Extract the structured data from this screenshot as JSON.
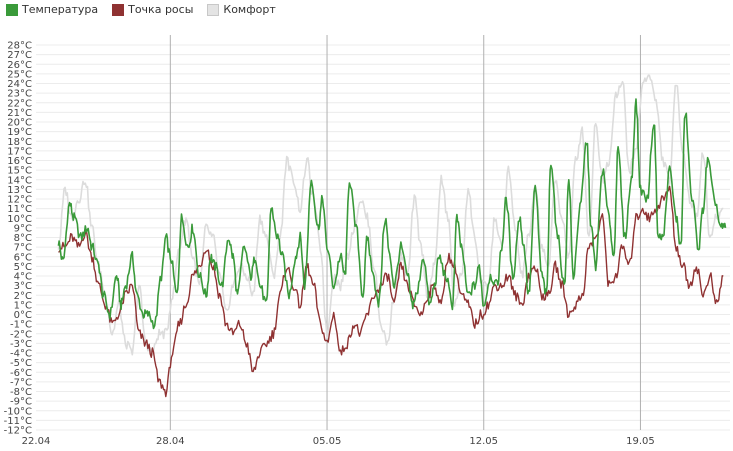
{
  "chart_data": {
    "type": "line",
    "title": "",
    "xlabel": "",
    "ylabel": "",
    "x_ticks": [
      "22.04",
      "28.04",
      "05.05",
      "12.05",
      "19.05"
    ],
    "x_range_days": [
      0,
      31
    ],
    "x_tick_days": [
      0,
      6,
      13,
      20,
      27
    ],
    "ylim": [
      -12,
      28
    ],
    "y_tick_values": [
      28,
      27,
      26,
      25,
      24,
      23,
      22,
      21,
      20,
      19,
      18,
      17,
      16,
      15,
      14,
      13,
      12,
      11,
      10,
      9,
      8,
      7,
      6,
      5,
      4,
      3,
      2,
      1,
      0,
      -1,
      -2,
      -3,
      -4,
      -5,
      -6,
      -7,
      -8,
      -9,
      -10,
      -11,
      -12
    ],
    "y_unit": "°C",
    "legend_position": "top-left",
    "series": [
      {
        "name": "Температура",
        "color": "#3a9a3a",
        "x": [
          1.0,
          1.2,
          1.5,
          1.7,
          2.0,
          2.3,
          2.5,
          2.8,
          3.0,
          3.3,
          3.6,
          3.8,
          4.0,
          4.3,
          4.5,
          4.8,
          5.0,
          5.3,
          5.6,
          5.8,
          6.0,
          6.3,
          6.5,
          6.8,
          7.0,
          7.3,
          7.6,
          7.8,
          8.0,
          8.3,
          8.6,
          8.8,
          9.0,
          9.3,
          9.6,
          9.8,
          10.0,
          10.3,
          10.5,
          10.8,
          11.0,
          11.3,
          11.6,
          11.8,
          12.0,
          12.3,
          12.6,
          12.8,
          13.0,
          13.3,
          13.6,
          13.8,
          14.0,
          14.3,
          14.6,
          14.8,
          15.0,
          15.3,
          15.6,
          15.8,
          16.0,
          16.3,
          16.6,
          16.8,
          17.0,
          17.3,
          17.6,
          17.8,
          18.0,
          18.3,
          18.6,
          18.8,
          19.0,
          19.3,
          19.6,
          19.8,
          20.0,
          20.3,
          20.6,
          20.8,
          21.0,
          21.3,
          21.6,
          21.8,
          22.0,
          22.3,
          22.6,
          22.8,
          23.0,
          23.3,
          23.6,
          23.8,
          24.0,
          24.3,
          24.6,
          24.8,
          25.0,
          25.3,
          25.6,
          25.8,
          26.0,
          26.3,
          26.6,
          26.8,
          27.0,
          27.3,
          27.6,
          27.8,
          28.0,
          28.3,
          28.6,
          28.8,
          29.0,
          29.3,
          29.6,
          29.8,
          30.0,
          30.3,
          30.6,
          30.8
        ],
        "values": [
          7.5,
          5.5,
          11.5,
          10,
          8,
          9,
          7,
          5,
          2,
          0,
          4,
          1,
          3,
          6,
          2,
          0,
          0,
          -1,
          4,
          8,
          6,
          2,
          10,
          7,
          9,
          4,
          2,
          6,
          5,
          3,
          8,
          6,
          2,
          7,
          4,
          6,
          3,
          1,
          11,
          8,
          6,
          2,
          6,
          8,
          3,
          14,
          9,
          12,
          7,
          3,
          6,
          4,
          14,
          9,
          2,
          8,
          5,
          1,
          10,
          6,
          3,
          7,
          4,
          1,
          2,
          6,
          1,
          3,
          6,
          4,
          1,
          10,
          7,
          2,
          3,
          5,
          1,
          4,
          3,
          7,
          12,
          4,
          10,
          7,
          2,
          13,
          4,
          2,
          16,
          8,
          3,
          14,
          4,
          11,
          18,
          9,
          5,
          15,
          10,
          6,
          17,
          8,
          14,
          22,
          13,
          12,
          20,
          8,
          8,
          15,
          10,
          7,
          21,
          12,
          7,
          11,
          16,
          12,
          9,
          9
        ]
      },
      {
        "name": "Точка росы",
        "color": "#8f3232",
        "x": [
          1.0,
          1.3,
          1.6,
          1.9,
          2.2,
          2.5,
          2.8,
          3.1,
          3.4,
          3.7,
          4.0,
          4.3,
          4.6,
          4.9,
          5.2,
          5.5,
          5.8,
          6.1,
          6.4,
          6.7,
          7.0,
          7.3,
          7.6,
          7.9,
          8.2,
          8.5,
          8.8,
          9.1,
          9.4,
          9.7,
          10.0,
          10.3,
          10.6,
          10.9,
          11.2,
          11.5,
          11.8,
          12.1,
          12.4,
          12.7,
          13.0,
          13.3,
          13.6,
          13.9,
          14.2,
          14.5,
          14.8,
          15.1,
          15.4,
          15.7,
          16.0,
          16.3,
          16.6,
          16.9,
          17.2,
          17.5,
          17.8,
          18.1,
          18.4,
          18.7,
          19.0,
          19.3,
          19.6,
          19.9,
          20.2,
          20.5,
          20.8,
          21.1,
          21.4,
          21.7,
          22.0,
          22.3,
          22.6,
          22.9,
          23.2,
          23.5,
          23.8,
          24.1,
          24.4,
          24.7,
          25.0,
          25.3,
          25.6,
          25.9,
          26.2,
          26.5,
          26.8,
          27.1,
          27.4,
          27.7,
          28.0,
          28.3,
          28.6,
          28.9,
          29.2,
          29.5,
          29.8,
          30.1,
          30.4,
          30.7
        ],
        "values": [
          7,
          7,
          8,
          7,
          8.5,
          6,
          3,
          1,
          -1,
          0,
          2,
          3,
          -2,
          -3,
          -4,
          -7,
          -8,
          -4,
          -1,
          1,
          4,
          5,
          7,
          5,
          2,
          -1,
          -2,
          -1,
          -3,
          -6,
          -4,
          -3,
          -2,
          2,
          5,
          3,
          1,
          5,
          3,
          -1,
          -3,
          0,
          -4,
          -3,
          -1,
          -2,
          0,
          2,
          3,
          4,
          1,
          5,
          3,
          1,
          0,
          2,
          3,
          1,
          6,
          5,
          2,
          1,
          -1,
          0,
          1,
          3,
          3,
          4,
          2,
          1,
          4,
          5,
          2,
          2,
          5,
          3,
          0,
          1,
          2,
          7,
          8,
          10,
          3,
          4,
          7,
          5,
          10,
          11,
          10,
          11,
          12,
          13,
          7,
          5,
          3,
          5,
          2,
          4,
          1,
          4
        ]
      },
      {
        "name": "Комфорт",
        "color": "#dcdcdc",
        "x": [
          1.0,
          1.3,
          1.6,
          1.9,
          2.2,
          2.5,
          2.8,
          3.1,
          3.4,
          3.7,
          4.0,
          4.3,
          4.6,
          4.9,
          5.2,
          5.5,
          5.8,
          6.1,
          6.4,
          6.7,
          7.0,
          7.3,
          7.6,
          7.9,
          8.2,
          8.5,
          8.8,
          9.1,
          9.4,
          9.7,
          10.0,
          10.3,
          10.6,
          10.9,
          11.2,
          11.5,
          11.8,
          12.1,
          12.4,
          12.7,
          13.0,
          13.3,
          13.6,
          13.9,
          14.2,
          14.5,
          14.8,
          15.1,
          15.4,
          15.7,
          16.0,
          16.3,
          16.6,
          16.9,
          17.2,
          17.5,
          17.8,
          18.1,
          18.4,
          18.7,
          19.0,
          19.3,
          19.6,
          19.9,
          20.2,
          20.5,
          20.8,
          21.1,
          21.4,
          21.7,
          22.0,
          22.3,
          22.6,
          22.9,
          23.2,
          23.5,
          23.8,
          24.1,
          24.4,
          24.7,
          25.0,
          25.3,
          25.6,
          25.9,
          26.2,
          26.5,
          26.8,
          27.1,
          27.4,
          27.7,
          28.0,
          28.3,
          28.6,
          28.9,
          29.2,
          29.5,
          29.8,
          30.1,
          30.4,
          30.7
        ],
        "values": [
          7,
          13,
          10,
          12,
          14,
          9,
          5,
          2,
          -2,
          1,
          -3,
          -4,
          3,
          -3,
          -4,
          -2,
          -2,
          2,
          7,
          10,
          6,
          3,
          9,
          8,
          4,
          0,
          3,
          5,
          4,
          2,
          10,
          8,
          4,
          8,
          16,
          14,
          11,
          16,
          12,
          7,
          -2,
          4,
          3,
          6,
          9,
          12,
          10,
          5,
          -1,
          -3,
          2,
          6,
          4,
          12,
          7,
          2,
          5,
          14,
          10,
          1,
          4,
          13,
          8,
          3,
          3,
          10,
          7,
          15,
          9,
          4,
          8,
          13,
          7,
          5,
          14,
          10,
          6,
          16,
          19,
          8,
          20,
          14,
          16,
          23,
          24,
          15,
          17,
          24,
          25,
          22,
          16,
          14,
          24,
          17,
          12,
          10,
          17,
          8,
          10,
          11
        ]
      }
    ]
  }
}
